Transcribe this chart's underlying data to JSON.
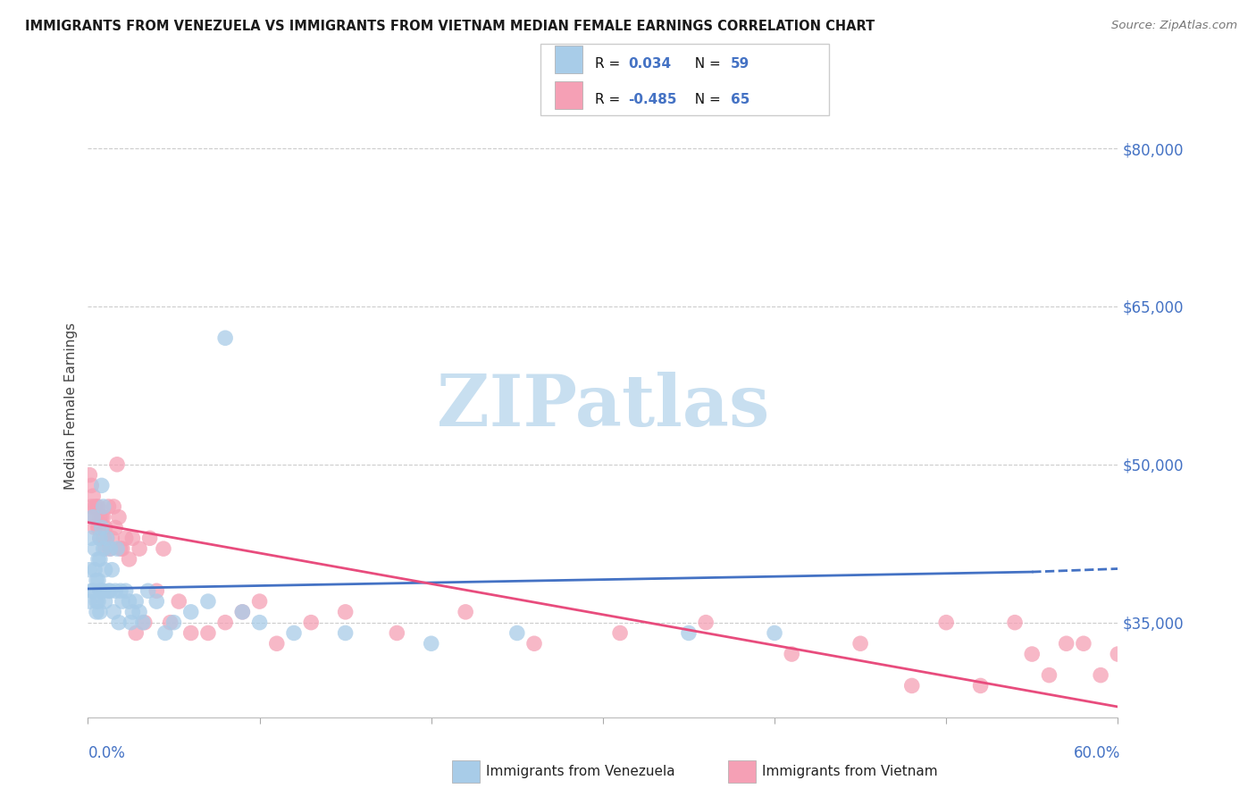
{
  "title": "IMMIGRANTS FROM VENEZUELA VS IMMIGRANTS FROM VIETNAM MEDIAN FEMALE EARNINGS CORRELATION CHART",
  "source": "Source: ZipAtlas.com",
  "ylabel": "Median Female Earnings",
  "xlim": [
    0.0,
    0.6
  ],
  "ylim": [
    26000,
    85000
  ],
  "ytick_positions": [
    35000,
    50000,
    65000,
    80000
  ],
  "ytick_labels": [
    "$35,000",
    "$50,000",
    "$65,000",
    "$80,000"
  ],
  "xtick_positions": [
    0.0,
    0.1,
    0.2,
    0.3,
    0.4,
    0.5,
    0.6
  ],
  "color_venezuela": "#a8cce8",
  "color_vietnam": "#f5a0b5",
  "color_trend_venezuela": "#4472c4",
  "color_trend_vietnam": "#e84c7d",
  "color_axis_labels": "#4472c4",
  "color_title": "#1a1a1a",
  "color_source": "#777777",
  "color_grid": "#cccccc",
  "watermark_text": "ZIPatlas",
  "watermark_color": "#c8dff0",
  "legend_R1": "0.034",
  "legend_N1": "59",
  "legend_R2": "-0.485",
  "legend_N2": "65",
  "venezuela_x": [
    0.001,
    0.001,
    0.002,
    0.002,
    0.003,
    0.003,
    0.004,
    0.004,
    0.005,
    0.005,
    0.005,
    0.006,
    0.006,
    0.006,
    0.007,
    0.007,
    0.007,
    0.007,
    0.008,
    0.008,
    0.008,
    0.009,
    0.009,
    0.009,
    0.01,
    0.01,
    0.011,
    0.012,
    0.013,
    0.013,
    0.014,
    0.015,
    0.016,
    0.017,
    0.018,
    0.019,
    0.02,
    0.022,
    0.024,
    0.025,
    0.026,
    0.028,
    0.03,
    0.032,
    0.035,
    0.04,
    0.045,
    0.05,
    0.06,
    0.07,
    0.08,
    0.09,
    0.1,
    0.12,
    0.15,
    0.2,
    0.25,
    0.35,
    0.4
  ],
  "venezuela_y": [
    40000,
    37000,
    43000,
    38000,
    45000,
    38000,
    42000,
    40000,
    39000,
    37000,
    36000,
    41000,
    39000,
    37000,
    43000,
    41000,
    38000,
    36000,
    48000,
    44000,
    38000,
    46000,
    42000,
    38000,
    40000,
    37000,
    43000,
    38000,
    42000,
    38000,
    40000,
    36000,
    38000,
    42000,
    35000,
    38000,
    37000,
    38000,
    37000,
    35000,
    36000,
    37000,
    36000,
    35000,
    38000,
    37000,
    34000,
    35000,
    36000,
    37000,
    62000,
    36000,
    35000,
    34000,
    34000,
    33000,
    34000,
    34000,
    34000
  ],
  "vietnam_x": [
    0.001,
    0.002,
    0.002,
    0.003,
    0.003,
    0.004,
    0.004,
    0.005,
    0.005,
    0.006,
    0.006,
    0.007,
    0.007,
    0.008,
    0.008,
    0.009,
    0.009,
    0.01,
    0.01,
    0.011,
    0.012,
    0.013,
    0.014,
    0.015,
    0.016,
    0.017,
    0.018,
    0.019,
    0.02,
    0.022,
    0.024,
    0.026,
    0.028,
    0.03,
    0.033,
    0.036,
    0.04,
    0.044,
    0.048,
    0.053,
    0.06,
    0.07,
    0.08,
    0.09,
    0.1,
    0.11,
    0.13,
    0.15,
    0.18,
    0.22,
    0.26,
    0.31,
    0.36,
    0.41,
    0.45,
    0.48,
    0.5,
    0.52,
    0.54,
    0.55,
    0.56,
    0.57,
    0.58,
    0.59,
    0.6
  ],
  "vietnam_y": [
    49000,
    48000,
    46000,
    47000,
    45000,
    46000,
    44000,
    46000,
    45000,
    46000,
    44000,
    45000,
    43000,
    45000,
    44000,
    45000,
    43000,
    44000,
    42000,
    43000,
    46000,
    42000,
    43000,
    46000,
    44000,
    50000,
    45000,
    42000,
    42000,
    43000,
    41000,
    43000,
    34000,
    42000,
    35000,
    43000,
    38000,
    42000,
    35000,
    37000,
    34000,
    34000,
    35000,
    36000,
    37000,
    33000,
    35000,
    36000,
    34000,
    36000,
    33000,
    34000,
    35000,
    32000,
    33000,
    29000,
    35000,
    29000,
    35000,
    32000,
    30000,
    33000,
    33000,
    30000,
    32000
  ]
}
